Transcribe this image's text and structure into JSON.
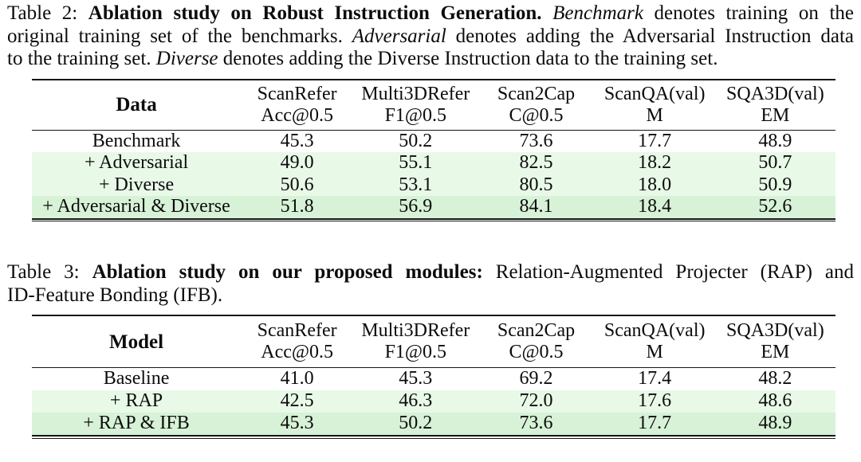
{
  "colors": {
    "background": "#ffffff",
    "row_highlight_light": "#e8f9e8",
    "row_highlight_strong": "#d7f2d7",
    "rule_color": "#161616",
    "text_color": "#0c0c0c"
  },
  "table2": {
    "caption_lines": [
      {
        "segments": [
          {
            "t": "Table 2: ",
            "s": "n"
          },
          {
            "t": "Ablation study on Robust Instruction Generation. ",
            "s": "b"
          },
          {
            "t": "Benchmark",
            "s": "i"
          },
          {
            "t": " denotes training on the",
            "s": "n"
          }
        ]
      },
      {
        "segments": [
          {
            "t": "original training set of the benchmarks. ",
            "s": "n"
          },
          {
            "t": "Adversarial",
            "s": "i"
          },
          {
            "t": " denotes adding the Adversarial Instruction data",
            "s": "n"
          }
        ]
      },
      {
        "segments": [
          {
            "t": "to the training set. ",
            "s": "n"
          },
          {
            "t": "Diverse",
            "s": "i"
          },
          {
            "t": " denotes adding the Diverse Instruction data to the training set.",
            "s": "n"
          }
        ]
      }
    ],
    "header": {
      "label": "Data",
      "columns": [
        {
          "line1": "ScanRefer",
          "line2": "Acc@0.5"
        },
        {
          "line1": "Multi3DRefer",
          "line2": "F1@0.5"
        },
        {
          "line1": "Scan2Cap",
          "line2": "C@0.5"
        },
        {
          "line1": "ScanQA(val)",
          "line2": "M"
        },
        {
          "line1": "SQA3D(val)",
          "line2": "EM"
        }
      ]
    },
    "rows": [
      {
        "label": "Benchmark",
        "values": [
          "45.3",
          "50.2",
          "73.6",
          "17.7",
          "48.9"
        ],
        "highlight": "none"
      },
      {
        "label": "+ Adversarial",
        "values": [
          "49.0",
          "55.1",
          "82.5",
          "18.2",
          "50.7"
        ],
        "highlight": "light"
      },
      {
        "label": "+ Diverse",
        "values": [
          "50.6",
          "53.1",
          "80.5",
          "18.0",
          "50.9"
        ],
        "highlight": "light"
      },
      {
        "label": "+ Adversarial & Diverse",
        "values": [
          "51.8",
          "56.9",
          "84.1",
          "18.4",
          "52.6"
        ],
        "highlight": "strong"
      }
    ]
  },
  "table3": {
    "caption_lines": [
      {
        "segments": [
          {
            "t": "Table 3: ",
            "s": "n"
          },
          {
            "t": "Ablation study on our proposed modules:",
            "s": "b"
          },
          {
            "t": " Relation-Augmented Projecter (RAP) and",
            "s": "n"
          }
        ]
      },
      {
        "segments": [
          {
            "t": "ID-Feature Bonding (IFB).",
            "s": "n"
          }
        ]
      }
    ],
    "header": {
      "label": "Model",
      "columns": [
        {
          "line1": "ScanRefer",
          "line2": "Acc@0.5"
        },
        {
          "line1": "Multi3DRefer",
          "line2": "F1@0.5"
        },
        {
          "line1": "Scan2Cap",
          "line2": "C@0.5"
        },
        {
          "line1": "ScanQA(val)",
          "line2": "M"
        },
        {
          "line1": "SQA3D(val)",
          "line2": "EM"
        }
      ]
    },
    "rows": [
      {
        "label": "Baseline",
        "values": [
          "41.0",
          "45.3",
          "69.2",
          "17.4",
          "48.2"
        ],
        "highlight": "none"
      },
      {
        "label": "+ RAP",
        "values": [
          "42.5",
          "46.3",
          "72.0",
          "17.6",
          "48.6"
        ],
        "highlight": "light"
      },
      {
        "label": "+ RAP & IFB",
        "values": [
          "45.3",
          "50.2",
          "73.6",
          "17.7",
          "48.9"
        ],
        "highlight": "strong"
      }
    ]
  }
}
